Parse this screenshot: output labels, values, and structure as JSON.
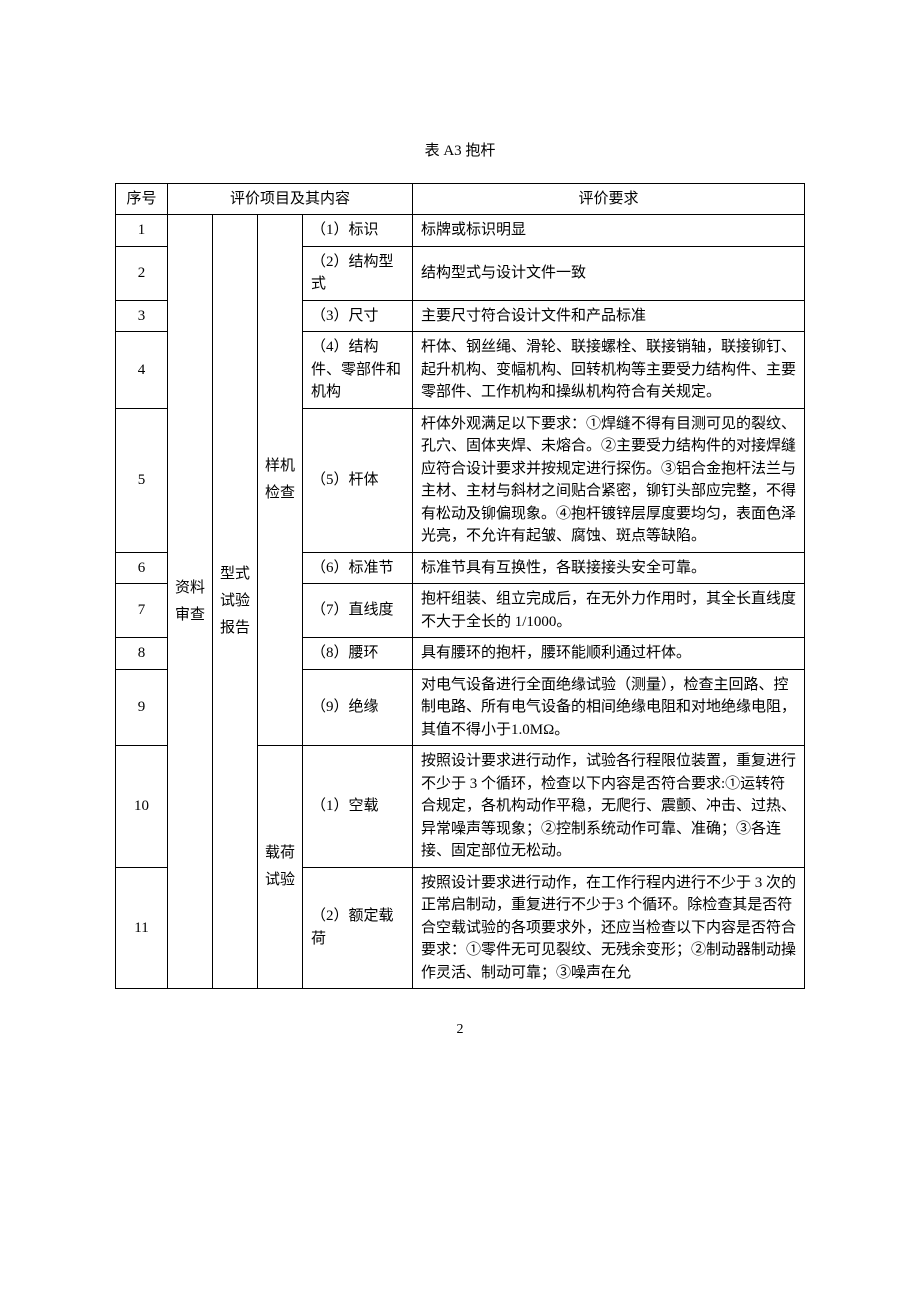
{
  "title": "表 A3 抱杆",
  "header": {
    "seq": "序号",
    "content": "评价项目及其内容",
    "req": "评价要求"
  },
  "vlabels": {
    "col1": "资料审查",
    "col2": "型式试验报告",
    "col3a": "样机检查",
    "col3b": "载荷试验"
  },
  "rows": [
    {
      "seq": "1",
      "item": "（1）标识",
      "req": "标牌或标识明显"
    },
    {
      "seq": "2",
      "item": "（2）结构型式",
      "req": "结构型式与设计文件一致"
    },
    {
      "seq": "3",
      "item": "（3）尺寸",
      "req": "主要尺寸符合设计文件和产品标准"
    },
    {
      "seq": "4",
      "item": "（4）结构件、零部件和机构",
      "req": "杆体、钢丝绳、滑轮、联接螺栓、联接销轴，联接铆钉、起升机构、变幅机构、回转机构等主要受力结构件、主要零部件、工作机构和操纵机构符合有关规定。"
    },
    {
      "seq": "5",
      "item": "（5）杆体",
      "req": "杆体外观满足以下要求：①焊缝不得有目测可见的裂纹、孔穴、固体夹焊、未熔合。②主要受力结构件的对接焊缝应符合设计要求并按规定进行探伤。③铝合金抱杆法兰与主材、主材与斜材之间贴合紧密，铆钉头部应完整，不得有松动及铆偏现象。④抱杆镀锌层厚度要均匀，表面色泽光亮，不允许有起皱、腐蚀、斑点等缺陷。"
    },
    {
      "seq": "6",
      "item": "（6）标准节",
      "req": "标准节具有互换性，各联接接头安全可靠。"
    },
    {
      "seq": "7",
      "item": "（7）直线度",
      "req": "抱杆组装、组立完成后，在无外力作用时，其全长直线度不大于全长的 1/1000。"
    },
    {
      "seq": "8",
      "item": "（8）腰环",
      "req": "具有腰环的抱杆，腰环能顺利通过杆体。"
    },
    {
      "seq": "9",
      "item": "（9）绝缘",
      "req": "对电气设备进行全面绝缘试验（测量），检查主回路、控制电路、所有电气设备的相间绝缘电阻和对地绝缘电阻，其值不得小于1.0MΩ。"
    },
    {
      "seq": "10",
      "item": "（1）空载",
      "req": "按照设计要求进行动作，试验各行程限位装置，重复进行不少于 3 个循环，检查以下内容是否符合要求:①运转符合规定，各机构动作平稳，无爬行、震颤、冲击、过热、异常噪声等现象；②控制系统动作可靠、准确；③各连接、固定部位无松动。"
    },
    {
      "seq": "11",
      "item": "（2）额定载荷",
      "req": "按照设计要求进行动作，在工作行程内进行不少于 3 次的正常启制动，重复进行不少于3 个循环。除检查其是否符合空载试验的各项要求外，还应当检查以下内容是否符合要求：①零件无可见裂纹、无残余变形；②制动器制动操作灵活、制动可靠；③噪声在允"
    }
  ],
  "page_number": "2"
}
